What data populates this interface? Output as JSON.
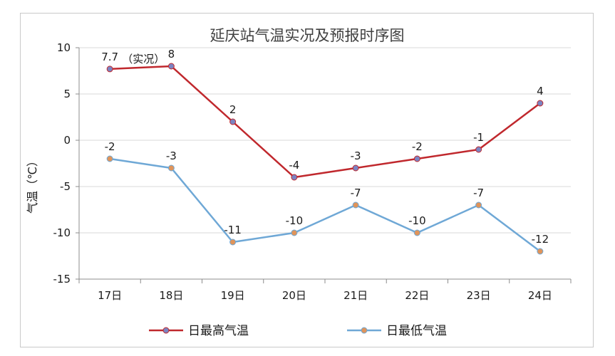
{
  "chart_data": {
    "type": "line",
    "title": "延庆站气温实况及预报时序图",
    "ylabel": "气温（℃）",
    "xlabel": "",
    "categories": [
      "17日",
      "18日",
      "19日",
      "20日",
      "21日",
      "22日",
      "23日",
      "24日"
    ],
    "ylim": [
      -15,
      10
    ],
    "yticks": [
      10,
      5,
      0,
      -5,
      -10,
      -15
    ],
    "grid": true,
    "legend_position": "bottom",
    "annotation": "（实况）",
    "series": [
      {
        "name": "日最高气温",
        "values": [
          7.7,
          8,
          2,
          -4,
          -3,
          -2,
          -1,
          4
        ],
        "labels": [
          "7.7",
          "8",
          "2",
          "-4",
          "-3",
          "-2",
          "-1",
          "4"
        ],
        "line_color": "#c0282d",
        "marker_fill": "#7b84c2"
      },
      {
        "name": "日最低气温",
        "values": [
          -2,
          -3,
          -11,
          -10,
          -7,
          -10,
          -7,
          -12
        ],
        "labels": [
          "-2",
          "-3",
          "-11",
          "-10",
          "-7",
          "-10",
          "-7",
          "-12"
        ],
        "line_color": "#6fa8d6",
        "marker_fill": "#e0945a"
      }
    ]
  }
}
